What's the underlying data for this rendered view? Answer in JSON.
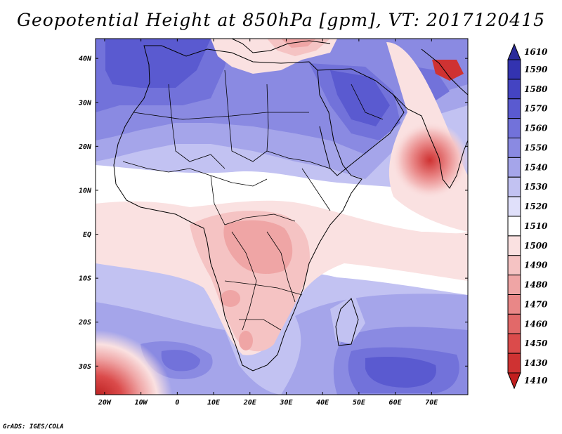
{
  "title": "Geopotential Height at 850hPa [gpm], VT: 2017120415",
  "credit": "GrADS: IGES/COLA",
  "map": {
    "lat_labels": [
      "40N",
      "30N",
      "20N",
      "10N",
      "EQ",
      "10S",
      "20S",
      "30S"
    ],
    "lat_values": [
      40,
      30,
      20,
      10,
      0,
      -10,
      -20,
      -30
    ],
    "lon_labels": [
      "20W",
      "10W",
      "0",
      "10E",
      "20E",
      "30E",
      "40E",
      "50E",
      "60E",
      "70E"
    ],
    "lon_values": [
      -20,
      -10,
      0,
      10,
      20,
      30,
      40,
      50,
      60,
      70
    ],
    "lon_range": [
      -22.5,
      80
    ],
    "lat_range": [
      -36.5,
      44.5
    ]
  },
  "colorbar": {
    "levels": [
      "1610",
      "1590",
      "1580",
      "1570",
      "1560",
      "1550",
      "1540",
      "1530",
      "1520",
      "1510",
      "1500",
      "1490",
      "1480",
      "1470",
      "1460",
      "1450",
      "1430",
      "1410"
    ],
    "colors": [
      "#2a2a9a",
      "#3333b0",
      "#4444c2",
      "#5a5ad0",
      "#7272da",
      "#8a8ae2",
      "#a5a5ea",
      "#c2c2f2",
      "#e0e0fa",
      "#ffffff",
      "#fae1e1",
      "#f5c3c3",
      "#efa5a5",
      "#e98787",
      "#e26969",
      "#db4b4b",
      "#cf3232",
      "#c21e1e"
    ]
  }
}
